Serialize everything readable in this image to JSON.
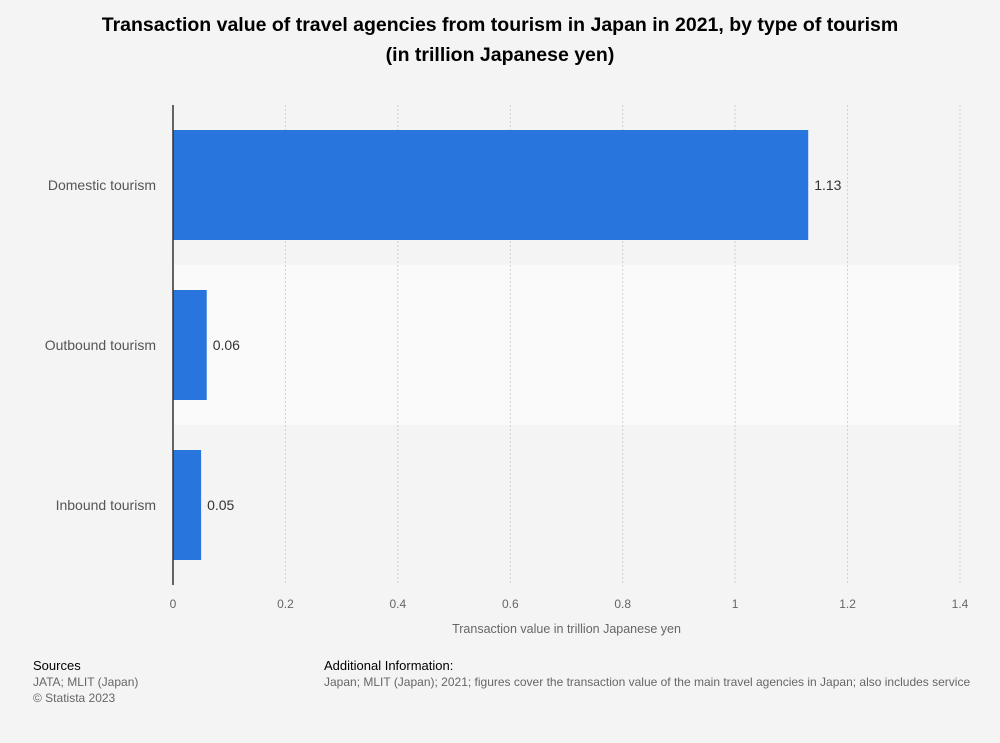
{
  "title": {
    "line1": "Transaction value of travel agencies from tourism in Japan in 2021, by type of tourism",
    "line2": "(in trillion Japanese yen)"
  },
  "chart_data": {
    "type": "bar",
    "orientation": "horizontal",
    "categories": [
      "Domestic tourism",
      "Outbound tourism",
      "Inbound tourism"
    ],
    "values": [
      1.13,
      0.06,
      0.05
    ],
    "value_labels": [
      "1.13",
      "0.06",
      "0.05"
    ],
    "xlabel": "Transaction value in trillion Japanese yen",
    "xlim": [
      0,
      1.4
    ],
    "xticks": [
      0,
      0.2,
      0.4,
      0.6,
      0.8,
      1,
      1.2,
      1.4
    ],
    "xtick_labels": [
      "0",
      "0.2",
      "0.4",
      "0.6",
      "0.8",
      "1",
      "1.2",
      "1.4"
    ],
    "bar_color": "#2876dd",
    "grid": true
  },
  "footer": {
    "sources_heading": "Sources",
    "sources_line1": "JATA; MLIT (Japan)",
    "sources_line2": "© Statista 2023",
    "additional_heading": "Additional Information:",
    "additional_text": "Japan; MLIT (Japan); 2021; figures cover the transaction value of the main travel agencies in Japan; also includes service"
  }
}
